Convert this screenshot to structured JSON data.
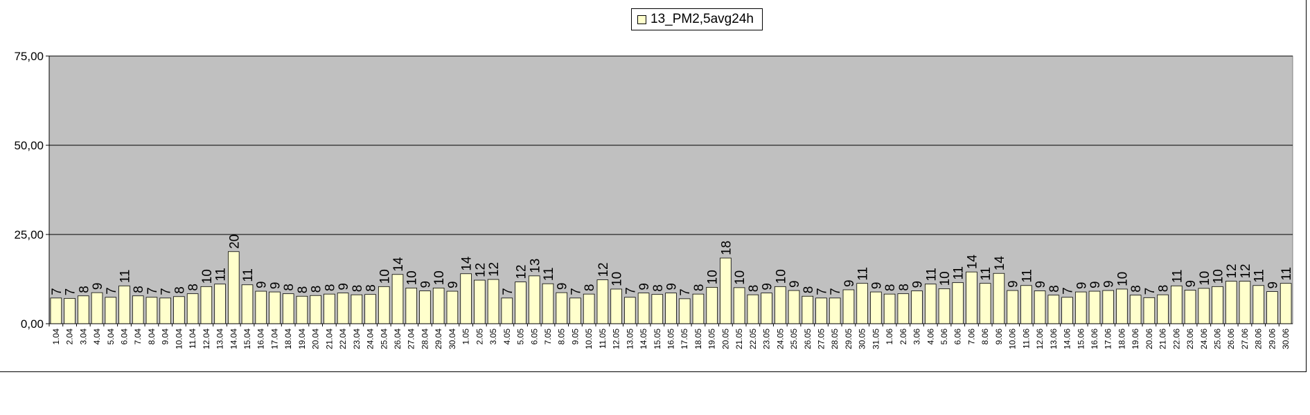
{
  "chart_data": {
    "type": "bar",
    "title": "",
    "xlabel": "",
    "ylabel": "",
    "ylim": [
      0,
      75
    ],
    "yticks": [
      "0,00",
      "25,00",
      "50,00",
      "75,00"
    ],
    "yticks_values": [
      0,
      25,
      50,
      75
    ],
    "grid": true,
    "legend_position": "top-center",
    "colors": {
      "bar": "#FFFFCC",
      "plot_background": "#C0C0C0",
      "grid": "#000000"
    },
    "series": [
      {
        "name": "13_PM2,5avg24h",
        "categories": [
          "1.04",
          "2.04",
          "3.04",
          "4.04",
          "5.04",
          "6.04",
          "7.04",
          "8.04",
          "9.04",
          "10.04",
          "11.04",
          "12.04",
          "13.04",
          "14.04",
          "15.04",
          "16.04",
          "17.04",
          "18.04",
          "19.04",
          "20.04",
          "21.04",
          "22.04",
          "23.04",
          "24.04",
          "25.04",
          "26.04",
          "27.04",
          "28.04",
          "29.04",
          "30.04",
          "1.05",
          "2.05",
          "3.05",
          "4.05",
          "5.05",
          "6.05",
          "7.05",
          "8.05",
          "9.05",
          "10.05",
          "11.05",
          "12.05",
          "13.05",
          "14.05",
          "15.05",
          "16.05",
          "17.05",
          "18.05",
          "19.05",
          "20.05",
          "21.05",
          "22.05",
          "23.05",
          "24.05",
          "25.05",
          "26.05",
          "27.05",
          "28.05",
          "29.05",
          "30.05",
          "31.05",
          "1.06",
          "2.06",
          "3.06",
          "4.06",
          "5.06",
          "6.06",
          "7.06",
          "8.06",
          "9.06",
          "10.06",
          "11.06",
          "12.06",
          "13.06",
          "14.06",
          "15.06",
          "16.06",
          "17.06",
          "18.06",
          "19.06",
          "20.06",
          "21.06",
          "22.06",
          "23.06",
          "24.06",
          "25.06",
          "26.06",
          "27.06",
          "28.06",
          "29.06",
          "30.06"
        ],
        "values": [
          7.2,
          7.1,
          7.8,
          8.7,
          7.4,
          10.6,
          7.8,
          7.4,
          7.2,
          7.6,
          8.4,
          10.4,
          11.1,
          20.2,
          10.9,
          9.1,
          8.9,
          8.4,
          7.7,
          7.9,
          8.3,
          8.6,
          8.1,
          8.2,
          10.4,
          13.8,
          10.0,
          9.2,
          10.0,
          9.1,
          14.0,
          12.2,
          12.4,
          7.2,
          11.7,
          13.4,
          11.2,
          8.7,
          7.2,
          8.3,
          12.3,
          9.7,
          7.4,
          8.6,
          8.2,
          8.6,
          7.0,
          8.3,
          10.2,
          18.4,
          10.1,
          8.1,
          8.6,
          10.4,
          9.3,
          7.7,
          7.2,
          7.2,
          9.5,
          11.3,
          8.9,
          8.3,
          8.4,
          9.2,
          11.1,
          9.8,
          11.5,
          14.5,
          11.3,
          14.1,
          9.3,
          10.7,
          9.2,
          8.0,
          7.4,
          8.9,
          9.1,
          9.3,
          9.7,
          8.0,
          7.3,
          8.1,
          10.6,
          9.4,
          9.9,
          10.4,
          11.9,
          11.9,
          10.7,
          9.0,
          11.3
        ],
        "labels": [
          "7",
          "7",
          "8",
          "9",
          "7",
          "11",
          "8",
          "7",
          "7",
          "8",
          "8",
          "10",
          "11",
          "20",
          "11",
          "9",
          "9",
          "8",
          "8",
          "8",
          "8",
          "9",
          "8",
          "8",
          "10",
          "14",
          "10",
          "9",
          "10",
          "9",
          "14",
          "12",
          "12",
          "7",
          "12",
          "13",
          "11",
          "9",
          "7",
          "8",
          "12",
          "10",
          "7",
          "9",
          "8",
          "9",
          "7",
          "8",
          "10",
          "18",
          "10",
          "8",
          "9",
          "10",
          "9",
          "8",
          "7",
          "7",
          "9",
          "11",
          "9",
          "8",
          "8",
          "9",
          "11",
          "10",
          "11",
          "14",
          "11",
          "14",
          "9",
          "11",
          "9",
          "8",
          "7",
          "9",
          "9",
          "9",
          "10",
          "8",
          "7",
          "8",
          "11",
          "9",
          "10",
          "10",
          "12",
          "12",
          "11",
          "9",
          "11"
        ]
      }
    ]
  }
}
